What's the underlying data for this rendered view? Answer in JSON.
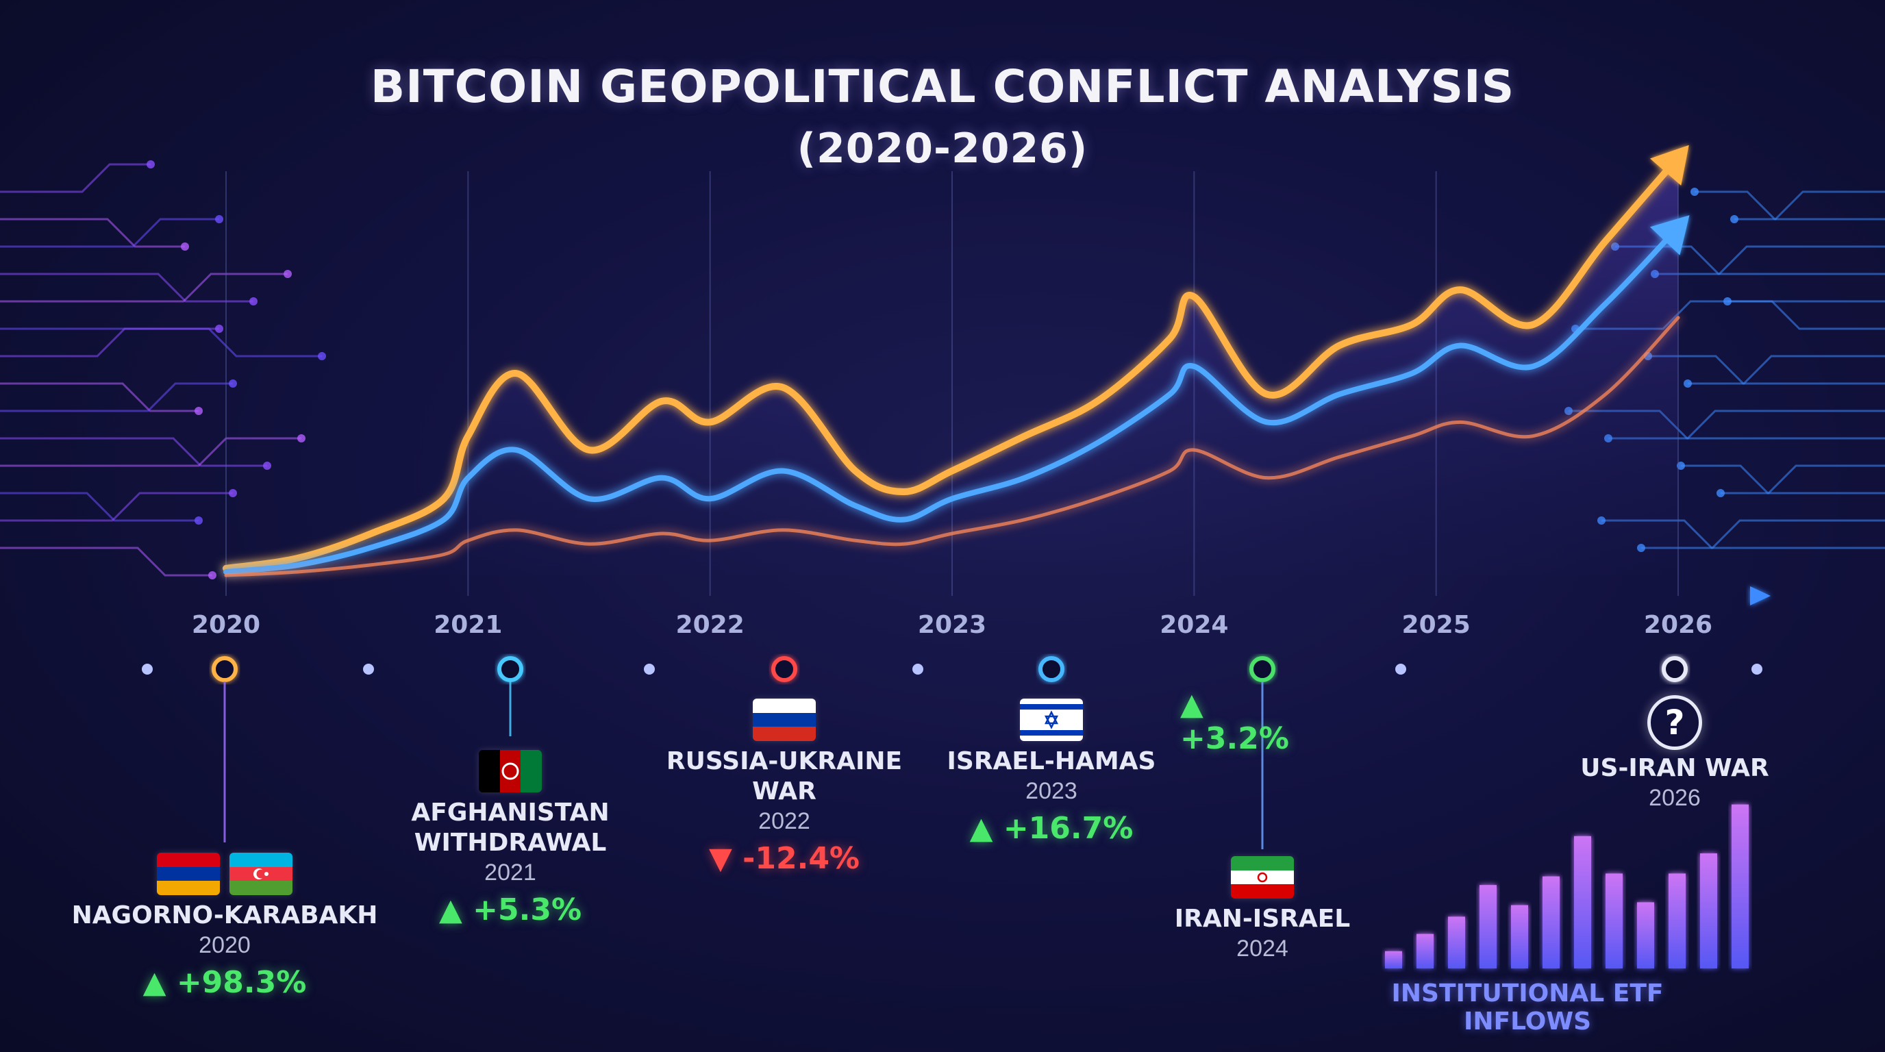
{
  "title": "BITCOIN GEOPOLITICAL CONFLICT ANALYSIS",
  "subtitle": "(2020-2026)",
  "chart_data": {
    "type": "line",
    "title": "BITCOIN GEOPOLITICAL CONFLICT ANALYSIS (2020-2026)",
    "x": [
      2020.0,
      2020.3,
      2020.6,
      2020.9,
      2021.0,
      2021.2,
      2021.5,
      2021.8,
      2022.0,
      2022.3,
      2022.6,
      2022.8,
      2023.0,
      2023.3,
      2023.6,
      2023.9,
      2024.0,
      2024.3,
      2024.6,
      2024.9,
      2025.1,
      2025.4,
      2025.7,
      2026.0
    ],
    "xticks": [
      "2020",
      "2021",
      "2022",
      "2023",
      "2024",
      "2025",
      "2026"
    ],
    "xlim": [
      2020,
      2026
    ],
    "ylim": [
      0,
      100
    ],
    "grid": true,
    "series": [
      {
        "values": [
          2,
          5,
          12,
          22,
          40,
          58,
          36,
          50,
          44,
          54,
          30,
          24,
          30,
          40,
          50,
          68,
          80,
          52,
          66,
          72,
          82,
          72,
          96,
          120
        ],
        "color": "#ffb347"
      },
      {
        "values": [
          1,
          3,
          8,
          16,
          28,
          36,
          22,
          28,
          22,
          30,
          20,
          16,
          22,
          28,
          38,
          52,
          60,
          44,
          52,
          58,
          66,
          60,
          78,
          100
        ],
        "color": "#4fa8ff"
      },
      {
        "values": [
          0,
          1,
          3,
          6,
          10,
          13,
          9,
          12,
          10,
          13,
          10,
          9,
          12,
          16,
          22,
          30,
          36,
          28,
          34,
          40,
          44,
          40,
          52,
          74
        ],
        "color": "#ff8a5a"
      }
    ],
    "etf_inflows": {
      "label": "INSTITUTIONAL ETF INFLOWS",
      "values": [
        12,
        24,
        36,
        58,
        44,
        64,
        92,
        66,
        46,
        66,
        80,
        114
      ]
    }
  },
  "timeline": {
    "events": [
      {
        "name": "NAGORNO-KARABAKH",
        "year": "2020",
        "change": "▲ +98.3%",
        "direction": "up",
        "flags": [
          "armenia-flag",
          "azerbaijan-flag"
        ]
      },
      {
        "name": "AFGHANISTAN\nWITHDRAWAL",
        "year": "2021",
        "change": "▲ +5.3%",
        "direction": "up",
        "flags": [
          "afghanistan-flag"
        ]
      },
      {
        "name": "RUSSIA-UKRAINE\nWAR",
        "year": "2022",
        "change": "▼ -12.4%",
        "direction": "down",
        "flags": [
          "russia-flag"
        ]
      },
      {
        "name": "ISRAEL-HAMAS",
        "year": "2023",
        "change": "▲ +16.7%",
        "direction": "up",
        "flags": [
          "israel-flag"
        ]
      },
      {
        "name": "IRAN-ISRAEL",
        "year": "2024",
        "change": "▲ +3.2%",
        "direction": "up",
        "flags": [
          "iran-flag"
        ]
      },
      {
        "name": "US-IRAN WAR",
        "year": "2026",
        "change": "",
        "direction": "unknown",
        "icon": "question-mark-icon",
        "icon_text": "?"
      }
    ]
  },
  "colors": {
    "up": "#49e86a",
    "down": "#ff4a4a",
    "axis": "#3d8bff",
    "etf": "#b96bff"
  }
}
